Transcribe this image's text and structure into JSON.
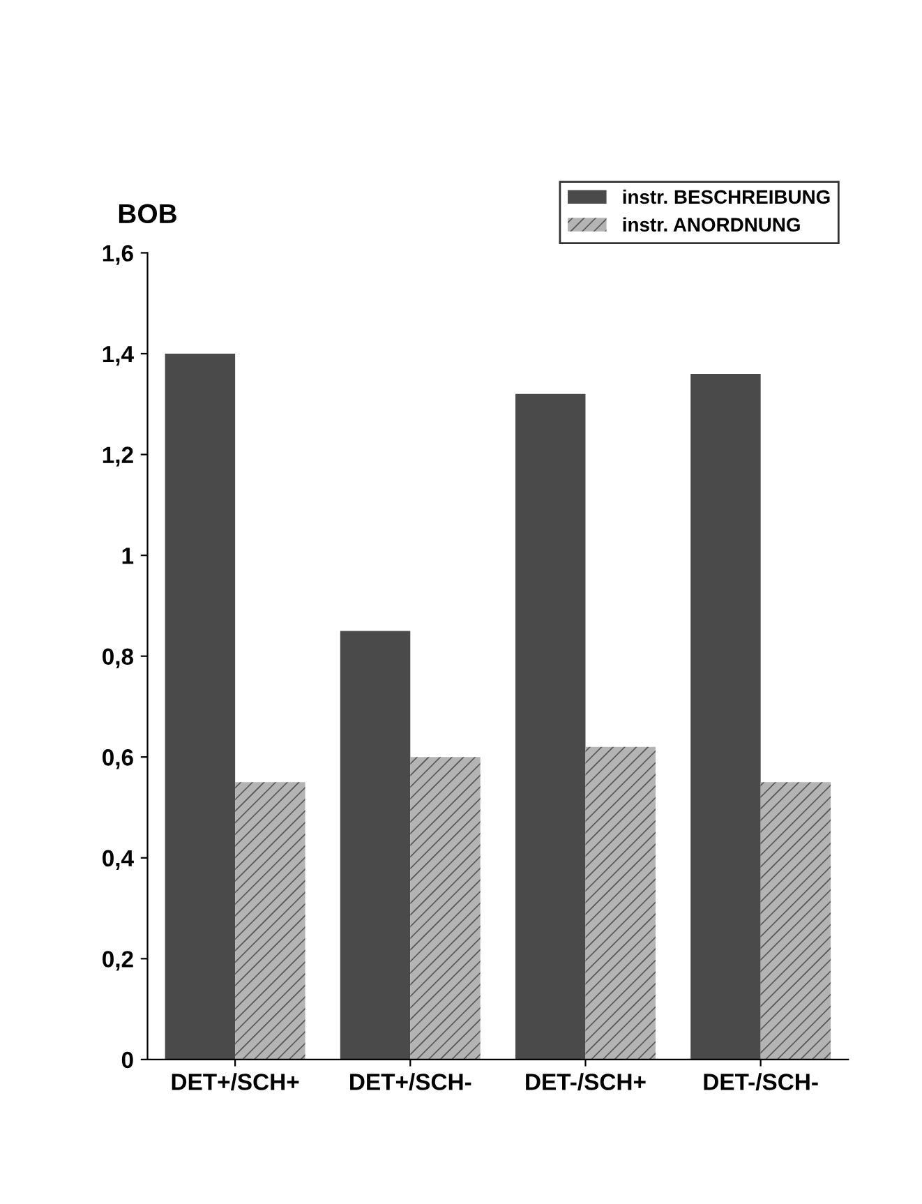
{
  "chart_data": {
    "type": "bar",
    "ylabel": "BOB",
    "categories": [
      "DET+/SCH+",
      "DET+/SCH-",
      "DET-/SCH+",
      "DET-/SCH-"
    ],
    "series": [
      {
        "name": "instr. BESCHREIBUNG",
        "color": "#4a4a4a",
        "values": [
          1.4,
          0.85,
          1.32,
          1.36
        ]
      },
      {
        "name": "instr. ANORDNUNG",
        "color": "#b4b4b4",
        "values": [
          0.55,
          0.6,
          0.62,
          0.55
        ]
      }
    ],
    "ylim": [
      0,
      1.6
    ],
    "yticks": [
      0,
      {
        "value": 0.2,
        "label": "0,2"
      },
      {
        "value": 0.4,
        "label": "0,4"
      },
      {
        "value": 0.6,
        "label": "0,6"
      },
      {
        "value": 0.8,
        "label": "0,8"
      },
      1,
      {
        "value": 1.2,
        "label": "1,2"
      },
      {
        "value": 1.4,
        "label": "1,4"
      },
      {
        "value": 1.6,
        "label": "1,6"
      }
    ],
    "grid": false,
    "legend": "top right"
  }
}
